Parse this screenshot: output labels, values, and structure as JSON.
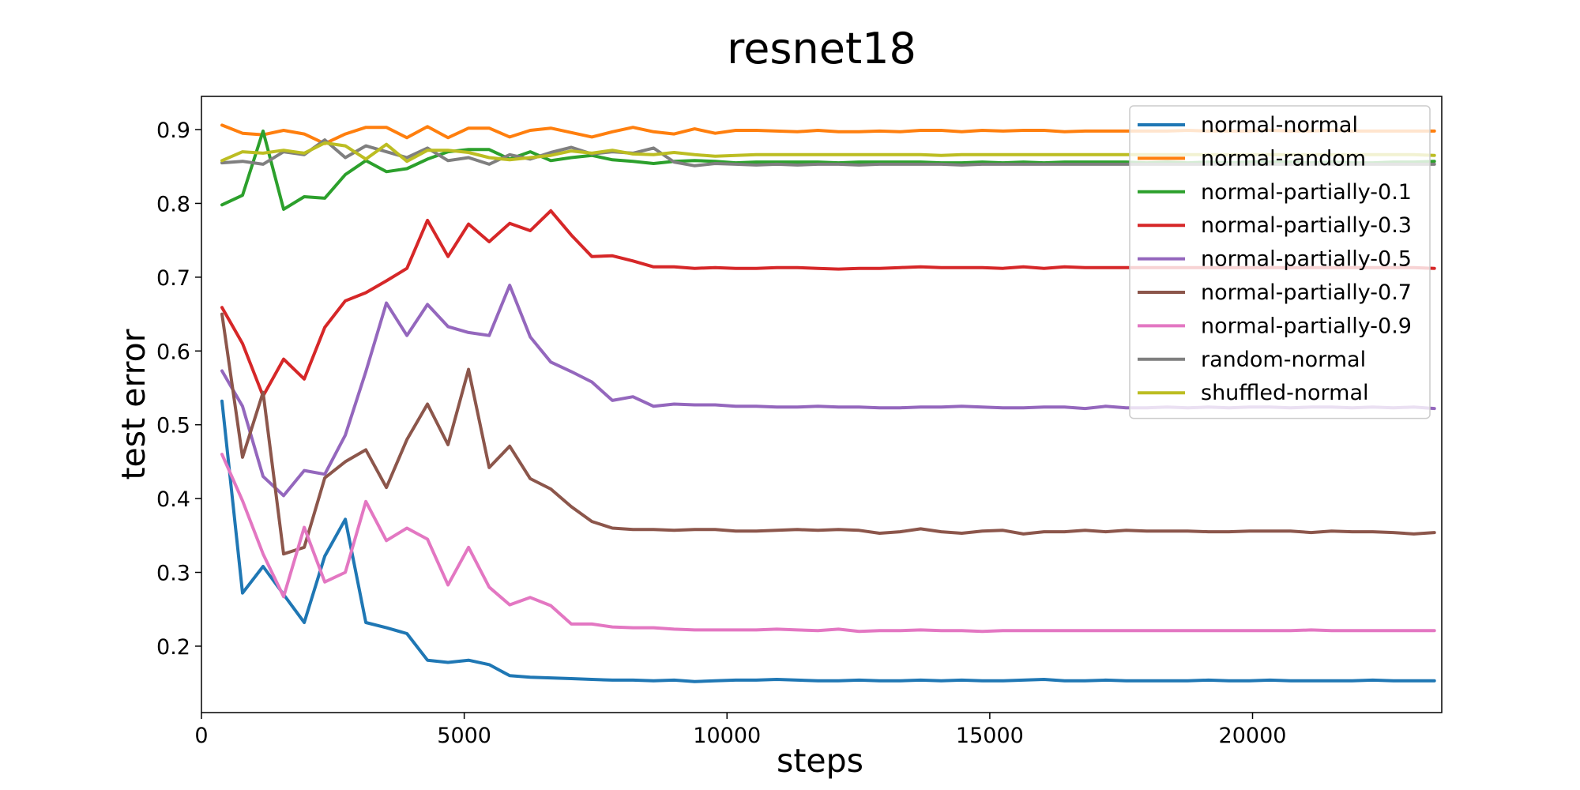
{
  "chart_data": {
    "type": "line",
    "title": "resnet18",
    "xlabel": "steps",
    "ylabel": "test error",
    "xlim": [
      0,
      23600
    ],
    "ylim": [
      0.11,
      0.945
    ],
    "xticks": [
      0,
      5000,
      10000,
      15000,
      20000
    ],
    "xtick_labels": [
      "0",
      "5000",
      "10000",
      "15000",
      "20000"
    ],
    "yticks": [
      0.2,
      0.3,
      0.4,
      0.5,
      0.6,
      0.7,
      0.8,
      0.9
    ],
    "ytick_labels": [
      "0.2",
      "0.3",
      "0.4",
      "0.5",
      "0.6",
      "0.7",
      "0.8",
      "0.9"
    ],
    "grid": false,
    "legend_position": "top-right",
    "x": [
      391,
      782,
      1173,
      1564,
      1955,
      2346,
      2737,
      3128,
      3519,
      3910,
      4301,
      4692,
      5083,
      5474,
      5865,
      6256,
      6647,
      7038,
      7429,
      7820,
      8211,
      8602,
      8993,
      9384,
      9775,
      10166,
      10557,
      10948,
      11339,
      11730,
      12121,
      12512,
      12903,
      13294,
      13685,
      14076,
      14467,
      14858,
      15249,
      15640,
      16031,
      16422,
      16813,
      17204,
      17595,
      17986,
      18377,
      18768,
      19159,
      19550,
      19941,
      20332,
      20723,
      21114,
      21505,
      21896,
      22287,
      22678,
      23069,
      23460
    ],
    "series": [
      {
        "name": "normal-normal",
        "color": "#1f77b4",
        "values": [
          0.532,
          0.272,
          0.308,
          0.27,
          0.232,
          0.322,
          0.372,
          0.232,
          0.225,
          0.217,
          0.181,
          0.178,
          0.181,
          0.175,
          0.16,
          0.158,
          0.157,
          0.156,
          0.155,
          0.154,
          0.154,
          0.153,
          0.154,
          0.152,
          0.153,
          0.154,
          0.154,
          0.155,
          0.154,
          0.153,
          0.153,
          0.154,
          0.153,
          0.153,
          0.154,
          0.153,
          0.154,
          0.153,
          0.153,
          0.154,
          0.155,
          0.153,
          0.153,
          0.154,
          0.153,
          0.153,
          0.153,
          0.153,
          0.154,
          0.153,
          0.153,
          0.154,
          0.153,
          0.153,
          0.153,
          0.153,
          0.154,
          0.153,
          0.153,
          0.153
        ]
      },
      {
        "name": "normal-random",
        "color": "#ff7f0e",
        "values": [
          0.906,
          0.895,
          0.893,
          0.899,
          0.894,
          0.881,
          0.894,
          0.903,
          0.903,
          0.889,
          0.904,
          0.889,
          0.902,
          0.902,
          0.89,
          0.899,
          0.902,
          0.896,
          0.89,
          0.897,
          0.903,
          0.897,
          0.894,
          0.901,
          0.895,
          0.899,
          0.899,
          0.898,
          0.897,
          0.899,
          0.897,
          0.897,
          0.898,
          0.897,
          0.899,
          0.899,
          0.897,
          0.899,
          0.898,
          0.899,
          0.899,
          0.897,
          0.898,
          0.898,
          0.898,
          0.898,
          0.898,
          0.899,
          0.898,
          0.898,
          0.898,
          0.899,
          0.898,
          0.898,
          0.899,
          0.898,
          0.898,
          0.898,
          0.898,
          0.898
        ]
      },
      {
        "name": "normal-partially-0.1",
        "color": "#2ca02c",
        "values": [
          0.798,
          0.811,
          0.898,
          0.792,
          0.809,
          0.807,
          0.839,
          0.858,
          0.843,
          0.847,
          0.86,
          0.87,
          0.873,
          0.873,
          0.86,
          0.87,
          0.858,
          0.862,
          0.865,
          0.859,
          0.857,
          0.854,
          0.857,
          0.858,
          0.857,
          0.855,
          0.856,
          0.856,
          0.856,
          0.856,
          0.855,
          0.856,
          0.856,
          0.856,
          0.856,
          0.855,
          0.855,
          0.856,
          0.855,
          0.856,
          0.855,
          0.856,
          0.856,
          0.856,
          0.856,
          0.855,
          0.856,
          0.855,
          0.856,
          0.855,
          0.856,
          0.856,
          0.856,
          0.855,
          0.856,
          0.855,
          0.855,
          0.856,
          0.856,
          0.857
        ]
      },
      {
        "name": "normal-partially-0.3",
        "color": "#d62728",
        "values": [
          0.659,
          0.61,
          0.539,
          0.589,
          0.562,
          0.632,
          0.668,
          0.679,
          0.695,
          0.712,
          0.777,
          0.728,
          0.772,
          0.748,
          0.773,
          0.763,
          0.79,
          0.757,
          0.728,
          0.729,
          0.722,
          0.714,
          0.714,
          0.712,
          0.713,
          0.712,
          0.712,
          0.713,
          0.713,
          0.712,
          0.711,
          0.712,
          0.712,
          0.713,
          0.714,
          0.713,
          0.713,
          0.713,
          0.712,
          0.714,
          0.712,
          0.714,
          0.713,
          0.713,
          0.713,
          0.713,
          0.713,
          0.713,
          0.713,
          0.713,
          0.713,
          0.713,
          0.713,
          0.713,
          0.713,
          0.713,
          0.713,
          0.713,
          0.713,
          0.712
        ]
      },
      {
        "name": "normal-partially-0.5",
        "color": "#9467bd",
        "values": [
          0.573,
          0.525,
          0.43,
          0.404,
          0.438,
          0.433,
          0.486,
          0.572,
          0.665,
          0.621,
          0.663,
          0.633,
          0.625,
          0.621,
          0.689,
          0.619,
          0.585,
          0.572,
          0.558,
          0.533,
          0.538,
          0.525,
          0.528,
          0.527,
          0.527,
          0.525,
          0.525,
          0.524,
          0.524,
          0.525,
          0.524,
          0.524,
          0.523,
          0.523,
          0.524,
          0.524,
          0.525,
          0.524,
          0.523,
          0.523,
          0.524,
          0.524,
          0.522,
          0.525,
          0.523,
          0.523,
          0.524,
          0.523,
          0.524,
          0.523,
          0.524,
          0.524,
          0.523,
          0.524,
          0.524,
          0.523,
          0.524,
          0.523,
          0.524,
          0.522
        ]
      },
      {
        "name": "normal-partially-0.7",
        "color": "#8c564b",
        "values": [
          0.65,
          0.456,
          0.544,
          0.325,
          0.334,
          0.428,
          0.45,
          0.466,
          0.415,
          0.48,
          0.528,
          0.473,
          0.575,
          0.442,
          0.471,
          0.427,
          0.413,
          0.389,
          0.369,
          0.36,
          0.358,
          0.358,
          0.357,
          0.358,
          0.358,
          0.356,
          0.356,
          0.357,
          0.358,
          0.357,
          0.358,
          0.357,
          0.353,
          0.355,
          0.359,
          0.355,
          0.353,
          0.356,
          0.357,
          0.352,
          0.355,
          0.355,
          0.357,
          0.355,
          0.357,
          0.356,
          0.356,
          0.356,
          0.355,
          0.355,
          0.356,
          0.356,
          0.356,
          0.354,
          0.356,
          0.355,
          0.355,
          0.354,
          0.352,
          0.354
        ]
      },
      {
        "name": "normal-partially-0.9",
        "color": "#e377c2",
        "values": [
          0.46,
          0.397,
          0.325,
          0.267,
          0.361,
          0.287,
          0.3,
          0.396,
          0.343,
          0.36,
          0.345,
          0.283,
          0.334,
          0.28,
          0.256,
          0.266,
          0.255,
          0.23,
          0.23,
          0.226,
          0.225,
          0.225,
          0.223,
          0.222,
          0.222,
          0.222,
          0.222,
          0.223,
          0.222,
          0.221,
          0.223,
          0.22,
          0.221,
          0.221,
          0.222,
          0.221,
          0.221,
          0.22,
          0.221,
          0.221,
          0.221,
          0.221,
          0.221,
          0.221,
          0.221,
          0.221,
          0.221,
          0.221,
          0.221,
          0.221,
          0.221,
          0.221,
          0.221,
          0.222,
          0.221,
          0.221,
          0.221,
          0.221,
          0.221,
          0.221
        ]
      },
      {
        "name": "random-normal",
        "color": "#7f7f7f",
        "values": [
          0.855,
          0.857,
          0.853,
          0.87,
          0.866,
          0.886,
          0.862,
          0.878,
          0.87,
          0.862,
          0.875,
          0.858,
          0.862,
          0.853,
          0.866,
          0.86,
          0.869,
          0.876,
          0.867,
          0.87,
          0.868,
          0.875,
          0.856,
          0.851,
          0.854,
          0.853,
          0.852,
          0.853,
          0.852,
          0.853,
          0.853,
          0.852,
          0.853,
          0.853,
          0.853,
          0.853,
          0.852,
          0.853,
          0.853,
          0.853,
          0.853,
          0.853,
          0.853,
          0.853,
          0.853,
          0.853,
          0.853,
          0.853,
          0.853,
          0.853,
          0.853,
          0.853,
          0.853,
          0.853,
          0.853,
          0.853,
          0.853,
          0.853,
          0.853,
          0.853
        ]
      },
      {
        "name": "shuffled-normal",
        "color": "#bcbd22",
        "values": [
          0.858,
          0.87,
          0.868,
          0.872,
          0.868,
          0.882,
          0.878,
          0.86,
          0.88,
          0.857,
          0.872,
          0.872,
          0.869,
          0.862,
          0.859,
          0.862,
          0.865,
          0.871,
          0.868,
          0.872,
          0.867,
          0.866,
          0.869,
          0.866,
          0.864,
          0.865,
          0.866,
          0.866,
          0.866,
          0.866,
          0.866,
          0.866,
          0.866,
          0.866,
          0.866,
          0.865,
          0.866,
          0.866,
          0.866,
          0.866,
          0.866,
          0.866,
          0.866,
          0.866,
          0.866,
          0.866,
          0.866,
          0.866,
          0.866,
          0.866,
          0.866,
          0.866,
          0.866,
          0.866,
          0.866,
          0.866,
          0.866,
          0.866,
          0.866,
          0.865
        ]
      }
    ]
  }
}
